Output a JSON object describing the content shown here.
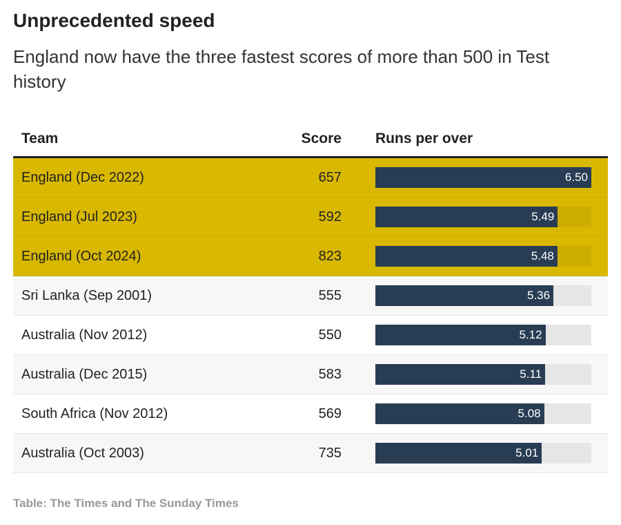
{
  "title": "Unprecedented speed",
  "subtitle": "England now have the three fastest scores of more than 500 in Test history",
  "source": "Table: The Times and The Sunday Times",
  "colors": {
    "highlight": "#d9b800",
    "bar": "#283d54",
    "track": "#e6e6e6"
  },
  "chart_data": {
    "type": "table",
    "columns": [
      "Team",
      "Score",
      "Runs per over"
    ],
    "bar_max": 6.5,
    "rows": [
      {
        "team": "England (Dec 2022)",
        "score": "657",
        "rpo": 6.5,
        "rpo_label": "6.50",
        "highlight": true
      },
      {
        "team": "England (Jul 2023)",
        "score": "592",
        "rpo": 5.49,
        "rpo_label": "5.49",
        "highlight": true
      },
      {
        "team": "England (Oct 2024)",
        "score": "823",
        "rpo": 5.48,
        "rpo_label": "5.48",
        "highlight": true
      },
      {
        "team": "Sri Lanka (Sep 2001)",
        "score": "555",
        "rpo": 5.36,
        "rpo_label": "5.36",
        "highlight": false
      },
      {
        "team": "Australia (Nov 2012)",
        "score": "550",
        "rpo": 5.12,
        "rpo_label": "5.12",
        "highlight": false
      },
      {
        "team": "Australia (Dec 2015)",
        "score": "583",
        "rpo": 5.11,
        "rpo_label": "5.11",
        "highlight": false
      },
      {
        "team": "South Africa (Nov 2012)",
        "score": "569",
        "rpo": 5.08,
        "rpo_label": "5.08",
        "highlight": false
      },
      {
        "team": "Australia (Oct 2003)",
        "score": "735",
        "rpo": 5.01,
        "rpo_label": "5.01",
        "highlight": false
      }
    ]
  }
}
